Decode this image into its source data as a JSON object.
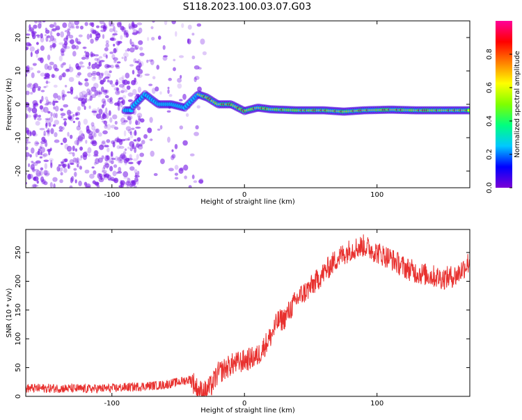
{
  "title": "S118.2023.100.03.07.G03",
  "colors": {
    "snr_line": "#e8302e",
    "spectrum_dot": "#7a1fe6",
    "colorbar": [
      "#7a00d6",
      "#0000ff",
      "#00c8ff",
      "#00ff7f",
      "#7fff00",
      "#ffff00",
      "#ff8000",
      "#ff0000",
      "#ff0099"
    ]
  },
  "chart_data": [
    {
      "type": "heatmap",
      "xlabel": "Height of straight line (km)",
      "ylabel": "Frequency (Hz)",
      "xlim": [
        -165,
        170
      ],
      "ylim": [
        -25,
        25
      ],
      "xticks": [
        -100,
        0,
        100
      ],
      "yticks": [
        -20,
        -10,
        0,
        10,
        20
      ],
      "colorbar_label": "Normalized spectral amplitude",
      "colorbar_ticks": [
        "0.0",
        "0.2",
        "0.4",
        "0.6",
        "0.8"
      ],
      "colorbar_range": [
        0,
        1
      ],
      "ridge_frequency_hz": [
        [
          -85,
          -1
        ],
        [
          -75,
          3
        ],
        [
          -65,
          0
        ],
        [
          -55,
          0
        ],
        [
          -45,
          -1
        ],
        [
          -35,
          3
        ],
        [
          -28,
          2
        ],
        [
          -20,
          0
        ],
        [
          -10,
          0
        ],
        [
          0,
          -2
        ],
        [
          10,
          -1
        ],
        [
          20,
          -1.5
        ],
        [
          40,
          -1.8
        ],
        [
          60,
          -1.8
        ],
        [
          75,
          -2.2
        ],
        [
          90,
          -1.8
        ],
        [
          110,
          -1.6
        ],
        [
          130,
          -1.8
        ],
        [
          150,
          -1.8
        ],
        [
          170,
          -1.8
        ]
      ]
    },
    {
      "type": "line",
      "xlabel": "Height of straight line (km)",
      "ylabel": "SNR (10 * v/v)",
      "xlim": [
        -165,
        170
      ],
      "ylim": [
        0,
        290
      ],
      "xticks": [
        -100,
        0,
        100
      ],
      "yticks": [
        0,
        50,
        100,
        150,
        200,
        250
      ],
      "series": [
        {
          "x": [
            -165,
            -140,
            -120,
            -100,
            -80,
            -60,
            -50,
            -40,
            -35,
            -30,
            -25,
            -20,
            -10,
            0,
            10,
            20,
            25,
            30,
            40,
            50,
            60,
            70,
            80,
            90,
            100,
            110,
            120,
            130,
            140,
            150,
            160,
            170
          ],
          "y": [
            14,
            14,
            13,
            14,
            17,
            20,
            25,
            30,
            10,
            8,
            18,
            40,
            55,
            62,
            70,
            105,
            130,
            135,
            170,
            190,
            215,
            240,
            255,
            262,
            250,
            240,
            225,
            215,
            210,
            205,
            210,
            235
          ]
        }
      ]
    }
  ]
}
